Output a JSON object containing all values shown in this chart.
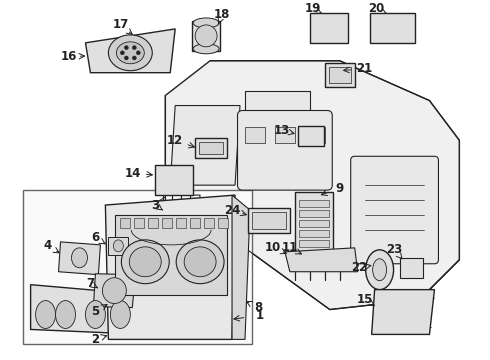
{
  "background_color": "#ffffff",
  "line_color": "#222222",
  "fig_width": 4.9,
  "fig_height": 3.6,
  "dpi": 100,
  "label_fontsize": 8.5,
  "arrow_lw": 0.7
}
